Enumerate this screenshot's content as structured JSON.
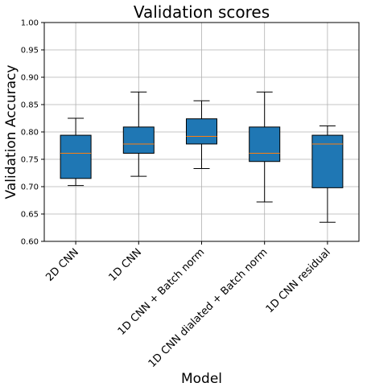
{
  "chart_data": {
    "type": "box",
    "title": "Validation scores",
    "xlabel": "Model",
    "ylabel": "Validation Accuracy",
    "ylim": [
      0.6,
      1.0
    ],
    "yticks": [
      "0.60",
      "0.65",
      "0.70",
      "0.75",
      "0.80",
      "0.85",
      "0.90",
      "0.95",
      "1.00"
    ],
    "grid": true,
    "box_color": "#1f77b4",
    "median_color": "#ff7f0e",
    "categories": [
      "2D CNN",
      "1D CNN",
      "1D CNN + Batch norm",
      "1D CNN dialated + Batch norm",
      "1D CNN residual"
    ],
    "boxes": [
      {
        "label": "2D CNN",
        "whisker_low": 0.702,
        "q1": 0.715,
        "median": 0.761,
        "q3": 0.794,
        "whisker_high": 0.825
      },
      {
        "label": "1D CNN",
        "whisker_low": 0.719,
        "q1": 0.761,
        "median": 0.778,
        "q3": 0.809,
        "whisker_high": 0.873
      },
      {
        "label": "1D CNN + Batch norm",
        "whisker_low": 0.733,
        "q1": 0.778,
        "median": 0.792,
        "q3": 0.824,
        "whisker_high": 0.857
      },
      {
        "label": "1D CNN dialated + Batch norm",
        "whisker_low": 0.672,
        "q1": 0.746,
        "median": 0.761,
        "q3": 0.809,
        "whisker_high": 0.873
      },
      {
        "label": "1D CNN residual",
        "whisker_low": 0.635,
        "q1": 0.698,
        "median": 0.778,
        "q3": 0.794,
        "whisker_high": 0.811
      }
    ]
  }
}
